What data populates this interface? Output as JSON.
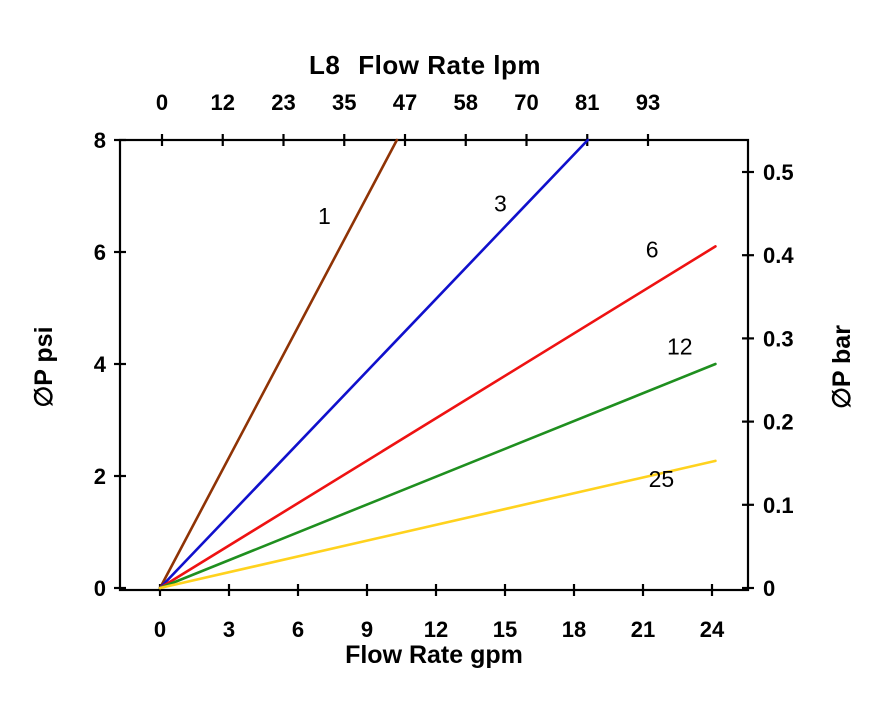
{
  "page": {
    "background": "#ffffff"
  },
  "chart_data": {
    "type": "line",
    "title": "L8",
    "top_axis": {
      "label": "Flow Rate lpm",
      "ticks": [
        "0",
        "12",
        "23",
        "35",
        "47",
        "58",
        "70",
        "81",
        "93"
      ]
    },
    "bottom_axis": {
      "label": "Flow Rate gpm",
      "ticks": [
        0,
        3,
        6,
        9,
        12,
        15,
        18,
        21,
        24
      ],
      "range": [
        0,
        24
      ]
    },
    "left_axis": {
      "label": "∅P psi",
      "ticks": [
        0,
        2,
        4,
        6,
        8
      ],
      "range": [
        0,
        8
      ]
    },
    "right_axis": {
      "label": "∅P bar",
      "ticks": [
        "0",
        "0.1",
        "0.2",
        "0.3",
        "0.4",
        "0.5"
      ]
    },
    "grid": false,
    "legend": "inline-labels-on-lines",
    "series": [
      {
        "name": "1",
        "color": "#8f3305",
        "points_gpm_psi": [
          [
            0,
            0
          ],
          [
            10.3,
            8
          ]
        ],
        "label_at_gpm_psi": [
          7.15,
          6.5
        ]
      },
      {
        "name": "3",
        "color": "#1010cc",
        "points_gpm_psi": [
          [
            0,
            0
          ],
          [
            18.6,
            8
          ]
        ],
        "label_at_gpm_psi": [
          14.8,
          6.72
        ]
      },
      {
        "name": "6",
        "color": "#ee1212",
        "points_gpm_psi": [
          [
            0,
            0
          ],
          [
            24.15,
            6.1
          ]
        ],
        "label_at_gpm_psi": [
          21.4,
          5.9
        ]
      },
      {
        "name": "12",
        "color": "#1f8f1f",
        "points_gpm_psi": [
          [
            0,
            0
          ],
          [
            24.15,
            4.0
          ]
        ],
        "label_at_gpm_psi": [
          22.6,
          4.17
        ]
      },
      {
        "name": "25",
        "color": "#ffd21e",
        "points_gpm_psi": [
          [
            0,
            0
          ],
          [
            24.15,
            2.27
          ]
        ],
        "label_at_gpm_psi": [
          21.8,
          1.8
        ]
      }
    ]
  }
}
